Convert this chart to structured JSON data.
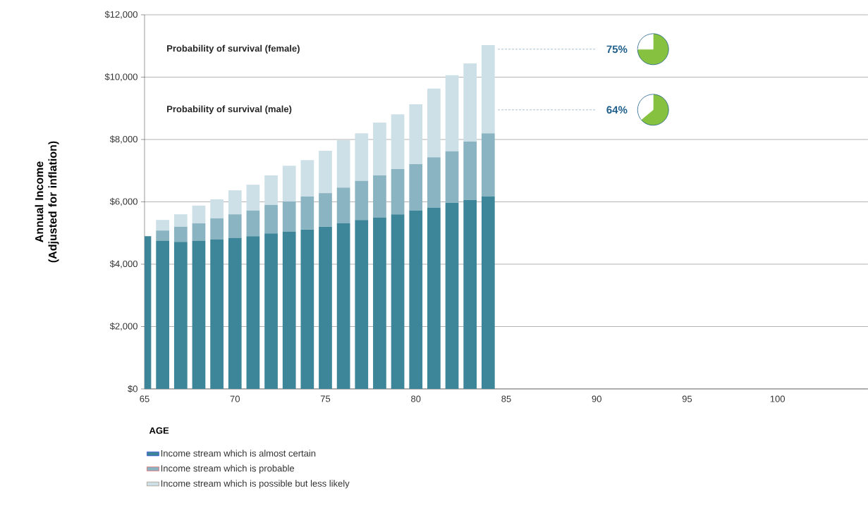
{
  "chart_data": {
    "type": "bar",
    "stacked": true,
    "xlabel": "AGE",
    "ylabel": "Annual Income (Adjusted for inflation)",
    "x": [
      65,
      66,
      67,
      68,
      69,
      70,
      71,
      72,
      73,
      74,
      75,
      76,
      77,
      78,
      79,
      80,
      81,
      82,
      83,
      84
    ],
    "series": [
      {
        "name": "Income stream which is almost certain",
        "color": "#3d8599",
        "values": [
          4900,
          4750,
          4720,
          4750,
          4790,
          4840,
          4900,
          4990,
          5040,
          5110,
          5200,
          5310,
          5420,
          5490,
          5600,
          5720,
          5810,
          5970,
          6060,
          6170
        ]
      },
      {
        "name": "Income stream which is probable",
        "color": "#8bb4c2",
        "values": [
          0,
          330,
          480,
          560,
          680,
          760,
          820,
          910,
          970,
          1060,
          1080,
          1150,
          1250,
          1360,
          1450,
          1490,
          1620,
          1650,
          1870,
          2030
        ]
      },
      {
        "name": "Income stream which is possible but less likely",
        "color": "#cde0e7",
        "values": [
          0,
          340,
          400,
          570,
          610,
          770,
          830,
          950,
          1150,
          1170,
          1360,
          1520,
          1530,
          1690,
          1760,
          1920,
          2200,
          2440,
          2510,
          2830
        ]
      }
    ],
    "xlim": [
      65,
      105
    ],
    "xticks": [
      65,
      70,
      75,
      80,
      85,
      90,
      95,
      100
    ],
    "ylim": [
      0,
      12000
    ],
    "yticks": [
      {
        "value": 0,
        "label": "$0"
      },
      {
        "value": 2000,
        "label": "$2,000"
      },
      {
        "value": 4000,
        "label": "$4,000"
      },
      {
        "value": 6000,
        "label": "$6,000"
      },
      {
        "value": 8000,
        "label": "$8,000"
      },
      {
        "value": 10000,
        "label": "$10,000"
      },
      {
        "value": 12000,
        "label": "$12,000"
      }
    ],
    "grid": "y",
    "legend": "bottom",
    "annotations": [
      "Probability of survival (female)",
      "Probability of survival (male)",
      "75%",
      "64%"
    ]
  }
}
